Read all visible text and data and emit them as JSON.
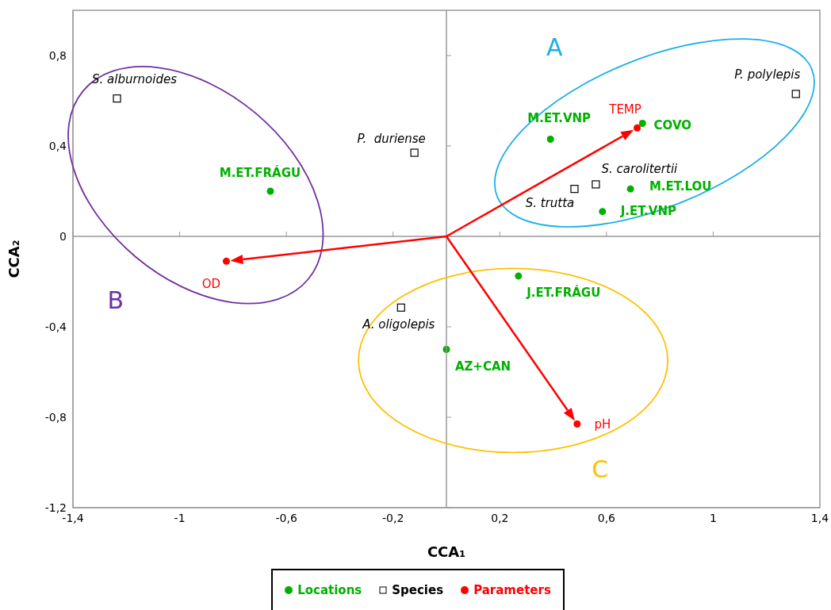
{
  "chart_data": {
    "type": "scatter",
    "xlabel": "CCA₁",
    "ylabel": "CCA₂",
    "xlim": [
      -1.4,
      1.4
    ],
    "ylim": [
      -1.2,
      1.0
    ],
    "xticks": [
      {
        "value": -1.4,
        "label": "-1,4"
      },
      {
        "value": -1,
        "label": "-1"
      },
      {
        "value": -0.6,
        "label": "-0,6"
      },
      {
        "value": -0.2,
        "label": "-0,2"
      },
      {
        "value": 0.2,
        "label": "0,2"
      },
      {
        "value": 0.6,
        "label": "0,6"
      },
      {
        "value": 1,
        "label": "1"
      },
      {
        "value": 1.4,
        "label": "1,4"
      }
    ],
    "yticks": [
      {
        "value": -1.2,
        "label": "-1,2"
      },
      {
        "value": -0.8,
        "label": "-0,8"
      },
      {
        "value": -0.4,
        "label": "-0,4"
      },
      0,
      {
        "value": 0.4,
        "label": "0,4"
      },
      {
        "value": 0.8,
        "label": "0,8"
      }
    ],
    "legend": "bottom",
    "series": [
      {
        "name": "Locations",
        "color": "#00b000",
        "marker": "circle",
        "x": [
          -0.66,
          0.39,
          0.735,
          0.69,
          0.585,
          0.27,
          0
        ],
        "values": [
          0.2,
          0.43,
          0.5,
          0.21,
          0.11,
          -0.175,
          -0.5
        ]
      },
      {
        "name": "Species",
        "color": "#000000",
        "marker": "square",
        "x": [
          -1.235,
          -0.12,
          1.31,
          0.56,
          0.48,
          -0.17
        ],
        "values": [
          0.61,
          0.37,
          0.63,
          0.23,
          0.21,
          -0.315
        ]
      },
      {
        "name": "Parameters",
        "color": "#ff0000",
        "marker": "circle",
        "x": [
          0.715,
          -0.825,
          0.49
        ],
        "values": [
          0.48,
          -0.11,
          -0.83
        ]
      }
    ],
    "annotations": [
      "A",
      "B",
      "C",
      {
        "text": "M.ET.FRÁGU",
        "x": -0.66,
        "y": 0.2
      },
      {
        "text": "M.ET.VNP",
        "x": 0.39,
        "y": 0.43
      },
      {
        "text": "COVO",
        "x": 0.735,
        "y": 0.5
      },
      {
        "text": "M.ET.LOU",
        "x": 0.69,
        "y": 0.21
      },
      {
        "text": "J.ET.VNP",
        "x": 0.585,
        "y": 0.11
      },
      {
        "text": "J.ET.FRÁGU",
        "x": 0.27,
        "y": -0.175
      },
      {
        "text": "AZ+CAN",
        "x": 0,
        "y": -0.5
      },
      {
        "text": "S. alburnoides",
        "x": -1.235,
        "y": 0.61
      },
      {
        "text": "P.  duriense",
        "x": -0.12,
        "y": 0.37
      },
      {
        "text": "P. polylepis",
        "x": 1.31,
        "y": 0.63
      },
      {
        "text": "S. carolitertii",
        "x": 0.56,
        "y": 0.23
      },
      {
        "text": "S. trutta",
        "x": 0.48,
        "y": 0.21
      },
      {
        "text": "A. oligolepis",
        "x": -0.17,
        "y": -0.315
      },
      {
        "text": "TEMP",
        "x": 0.715,
        "y": 0.48
      },
      {
        "text": "OD",
        "x": -0.825,
        "y": -0.11
      },
      {
        "text": "pH",
        "x": 0.49,
        "y": -0.83
      }
    ]
  }
}
